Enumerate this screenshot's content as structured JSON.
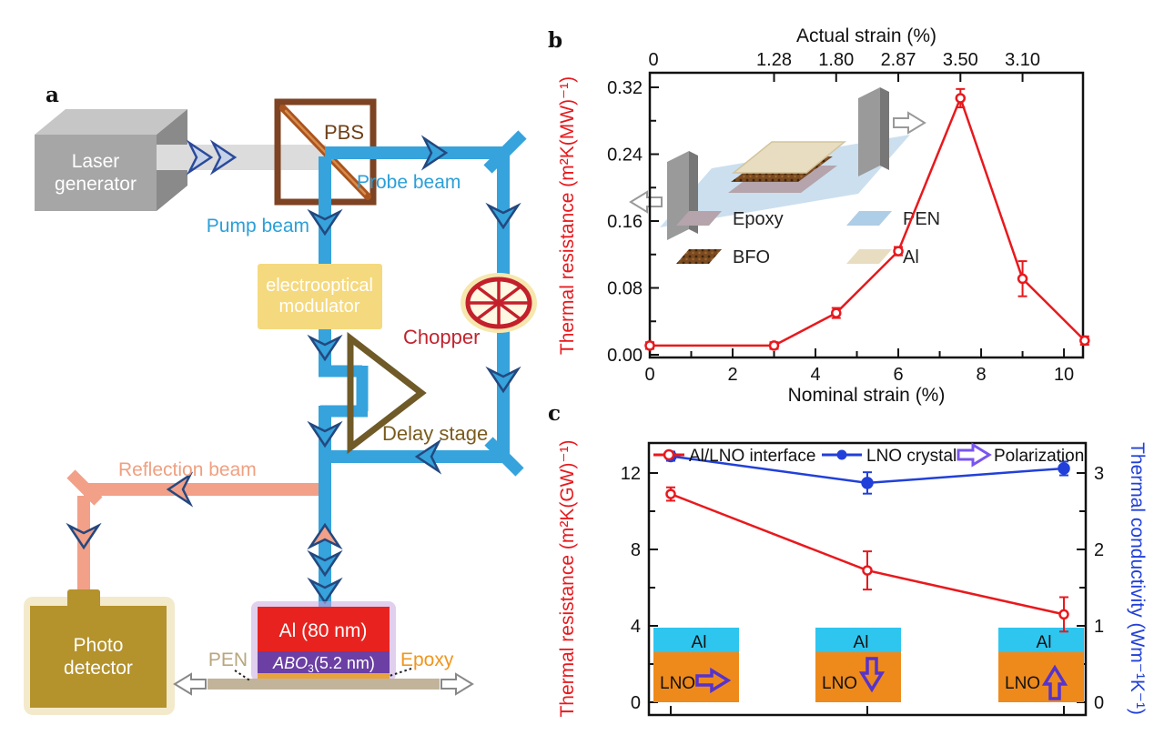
{
  "panel_a": {
    "label": "a",
    "laser_lines": [
      "Laser",
      "generator"
    ],
    "pbs_label": "PBS",
    "probe_beam_label": "Probe beam",
    "pump_beam_label": "Pump beam",
    "modulator_lines": [
      "electrooptical",
      "modulator"
    ],
    "chopper_label": "Chopper",
    "delay_stage_label": "Delay stage",
    "reflection_beam_label": "Reflection beam",
    "photo_detector_lines": [
      "Photo",
      "detector"
    ],
    "sample": {
      "al_layer": "Al (80 nm)",
      "film_base": "ABO",
      "film_sub": "3",
      "film_suffix": "(5.2 nm)",
      "pen_label": "PEN",
      "epoxy_label": "Epoxy"
    },
    "colors": {
      "beam_blue": "#36a3dc",
      "beam_gray": "#dcdcdc",
      "beam_salmon": "#f2a088",
      "modulator_yellow": "#f5d97e",
      "chopper_red": "#c3202c",
      "delay_brown": "#6f5a28",
      "detector_gold": "#b4922c",
      "al_red": "#e8231f",
      "film_purple": "#6b3fa3",
      "epoxy_orange": "#e8a33c",
      "pen_tan": "#c2b49a"
    }
  },
  "panel_b": {
    "label": "b"
  },
  "panel_c": {
    "label": "c"
  },
  "chart_data": [
    {
      "panel": "b",
      "type": "line",
      "x": [
        0,
        3,
        4.5,
        6,
        7.5,
        9,
        10.5
      ],
      "y": [
        0.011,
        0.011,
        0.05,
        0.124,
        0.307,
        0.091,
        0.017
      ],
      "yerr": [
        0.004,
        0.004,
        0.006,
        0.005,
        0.011,
        0.021,
        0.005
      ],
      "series_color": "#e8191d",
      "marker": "open-circle",
      "xlabel": "Nominal strain (%)",
      "x_ticks": [
        0,
        2,
        4,
        6,
        8,
        10
      ],
      "x_minor_ticks": [
        1,
        3,
        5,
        7,
        9
      ],
      "xlim": [
        0,
        10.46
      ],
      "top_axis": {
        "title": "Actual strain (%)",
        "tick_positions": [
          0,
          3,
          4.5,
          6,
          7.5,
          9
        ],
        "tick_labels": [
          "0",
          "1.28",
          "1.80",
          "2.87",
          "3.50",
          "3.10"
        ]
      },
      "ylabel": "Thermal resistance (m²K(MW)⁻¹)",
      "ylabel_color": "#e8191d",
      "y_ticks": [
        0,
        0.08,
        0.16,
        0.24,
        0.32
      ],
      "y_tick_labels": [
        "0.00",
        "0.08",
        "0.16",
        "0.24",
        "0.32"
      ],
      "y_minor_ticks": [
        0.04,
        0.12,
        0.2,
        0.28
      ],
      "ylim": [
        0,
        0.3407
      ],
      "grid": false,
      "legend": [
        {
          "label": "Epoxy",
          "color": "#b5a4ab"
        },
        {
          "label": "PEN",
          "color": "#aecde6"
        },
        {
          "label": "BFO",
          "color": "#7a4a21"
        },
        {
          "label": "Al",
          "color": "#e8ddc0"
        }
      ]
    },
    {
      "panel": "c",
      "type": "line",
      "x_labels": [
        "in-plane polarization",
        "downward polarization",
        "upward polarization"
      ],
      "series": [
        {
          "name": "Al/LNO interface",
          "axis": "left",
          "color": "#e8191d",
          "marker": "open-circle",
          "values": [
            10.9,
            6.9,
            4.6
          ],
          "errors": [
            0.35,
            1.0,
            0.9
          ]
        },
        {
          "name": "LNO crystal",
          "axis": "right",
          "color": "#2140d9",
          "marker": "filled-circle",
          "values": [
            3.22,
            2.87,
            3.06
          ],
          "errors": [
            0.06,
            0.14,
            0.09
          ]
        }
      ],
      "legend_extra": {
        "name": "Polarization",
        "symbol": "open-arrow",
        "color": "#7a55ee"
      },
      "left_axis": {
        "label": "Thermal resistance (m²K(GW)⁻¹)",
        "color": "#e8191d",
        "ticks": [
          0,
          4,
          8,
          12
        ],
        "minor_ticks": [
          2,
          6,
          10
        ],
        "lim": [
          0,
          14.2
        ]
      },
      "right_axis": {
        "label": "Thermal conductivity (Wm⁻¹K⁻¹)",
        "color": "#2140d9",
        "ticks": [
          0,
          1,
          2,
          3
        ],
        "minor_ticks": [
          0.5,
          1.5,
          2.5
        ],
        "lim": [
          0,
          3.55
        ]
      },
      "insets": [
        {
          "top": "Al",
          "bottom": "LNO",
          "arrow": "right"
        },
        {
          "top": "Al",
          "bottom": "LNO",
          "arrow": "down"
        },
        {
          "top": "Al",
          "bottom": "LNO",
          "arrow": "up"
        }
      ],
      "inset_colors": {
        "al_layer": "#2ec6ef",
        "lno_layer": "#ee8a1c",
        "arrow": "#5633cc"
      }
    }
  ]
}
